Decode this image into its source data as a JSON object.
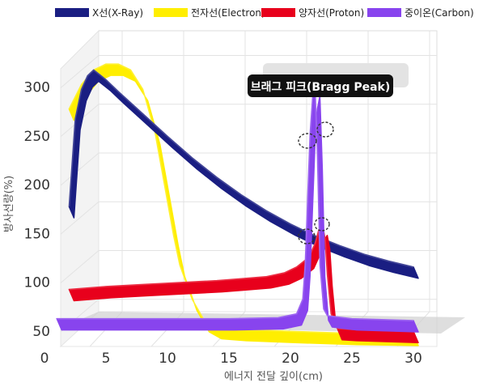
{
  "chart_data": {
    "type": "line",
    "title": "",
    "xlabel": "에너지 전달 깊이(cm)",
    "ylabel": "방사선량(%)",
    "xlim": [
      0,
      30
    ],
    "ylim": [
      0,
      300
    ],
    "x_ticks": [
      "0",
      "5",
      "10",
      "15",
      "20",
      "25",
      "30"
    ],
    "y_ticks": [
      "50",
      "100",
      "150",
      "200",
      "250",
      "300"
    ],
    "grid": true,
    "legend_position": "top",
    "annotation": "브래그 피크(Bragg Peak)",
    "series": [
      {
        "name": "X선(X-Ray)",
        "color": "#1a1e82",
        "x": [
          2,
          2.5,
          3,
          3.5,
          4,
          5,
          6,
          8,
          10,
          12,
          14,
          16,
          18,
          20,
          22,
          24,
          26,
          28,
          30
        ],
        "y": [
          150,
          240,
          270,
          284,
          290,
          280,
          268,
          245,
          222,
          200,
          180,
          162,
          146,
          132,
          120,
          110,
          101,
          94,
          88
        ]
      },
      {
        "name": "전자선(Electron)",
        "color": "#ffee00",
        "x": [
          2,
          3,
          4,
          5,
          6,
          7,
          8,
          9,
          9.5,
          10,
          10.5,
          11,
          12,
          13,
          14,
          16,
          20,
          25,
          30
        ],
        "y": [
          250,
          275,
          290,
          296,
          296,
          290,
          270,
          225,
          190,
          155,
          120,
          90,
          55,
          33,
          26,
          24,
          22,
          20,
          19
        ]
      },
      {
        "name": "양자선(Proton)",
        "color": "#e8001c",
        "x": [
          2,
          5,
          8,
          11,
          14,
          16,
          18,
          19.5,
          20.5,
          21.5,
          22,
          22.3,
          22.6,
          22.8,
          23,
          23.3,
          23.8,
          25,
          30
        ],
        "y": [
          65,
          68,
          70,
          72,
          74,
          76,
          78,
          82,
          88,
          98,
          112,
          126,
          132,
          118,
          80,
          40,
          25,
          24,
          22
        ]
      },
      {
        "name": "중이온(Carbon)",
        "color": "#8844ee",
        "x": [
          1,
          5,
          10,
          15,
          19,
          20.5,
          21,
          21.2,
          21.4,
          21.6,
          21.8,
          22,
          22.2,
          22.4,
          22.7,
          23,
          25,
          30
        ],
        "y": [
          35,
          35,
          35,
          35,
          36,
          40,
          55,
          90,
          160,
          225,
          262,
          275,
          200,
          90,
          45,
          38,
          35,
          33
        ]
      }
    ]
  }
}
